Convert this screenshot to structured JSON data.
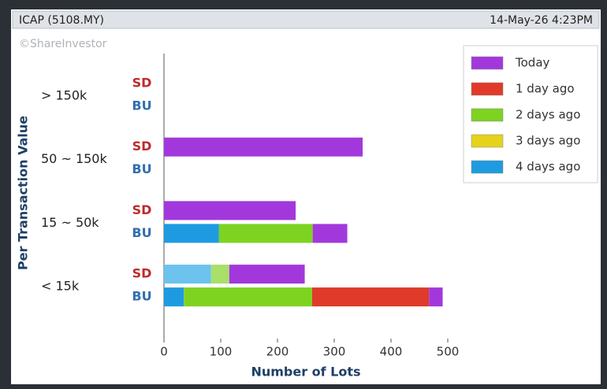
{
  "header": {
    "symbol": "ICAP (5108.MY)",
    "timestamp": "14-May-26 4:23PM",
    "watermark": "©ShareInvestor"
  },
  "chart_data": {
    "type": "stacked-bar-horizontal",
    "y_label": "Per Transaction Value",
    "x_label": "Number of Lots",
    "categories": [
      "> 150k",
      "50 ~ 150k",
      "15 ~ 50k",
      "< 15k"
    ],
    "groups": [
      "SD",
      "BU"
    ],
    "group_colors": [
      "#c0292b",
      "#2f6fae"
    ],
    "xlim": [
      0,
      500
    ],
    "xticks": [
      0,
      100,
      200,
      300,
      400,
      500
    ],
    "legend": "top-right",
    "series": [
      {
        "name": "4 days ago",
        "color": "#1e9be0",
        "color_sd": "#6cc3ee",
        "sd": [
          0,
          0,
          0,
          83
        ],
        "bu": [
          0,
          0,
          97,
          35
        ]
      },
      {
        "name": "3 days ago",
        "color": "#e6d21a",
        "color_sd": "#f0e070",
        "sd": [
          0,
          0,
          0,
          0
        ],
        "bu": [
          0,
          0,
          0,
          0
        ]
      },
      {
        "name": "2 days ago",
        "color": "#7ed321",
        "color_sd": "#a8e06a",
        "sd": [
          0,
          0,
          0,
          32
        ],
        "bu": [
          0,
          0,
          165,
          226
        ]
      },
      {
        "name": "1 day ago",
        "color": "#e03a2a",
        "color_sd": "#ec7a6e",
        "sd": [
          0,
          0,
          0,
          0
        ],
        "bu": [
          0,
          0,
          0,
          206
        ]
      },
      {
        "name": "Today",
        "color": "#a238dc",
        "color_sd": "#a238dc",
        "sd": [
          0,
          350,
          232,
          133
        ],
        "bu": [
          0,
          0,
          61,
          24
        ]
      }
    ]
  }
}
